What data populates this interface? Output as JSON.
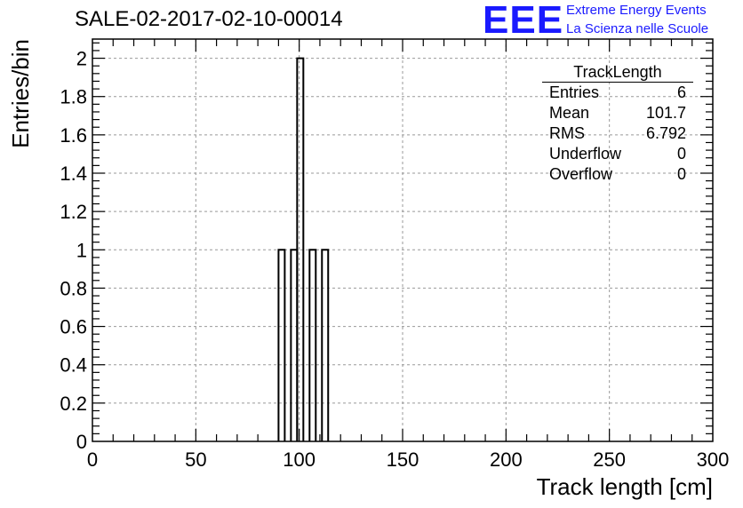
{
  "chart_data": {
    "type": "histogram",
    "title": "SALE-02-2017-02-10-00014",
    "xlabel": "Track length [cm]",
    "ylabel": "Entries/bin",
    "xlim": [
      0,
      300
    ],
    "ylim": [
      0,
      2.1
    ],
    "x_ticks": [
      0,
      50,
      100,
      150,
      200,
      250,
      300
    ],
    "x_tick_labels": [
      "0",
      "50",
      "100",
      "150",
      "200",
      "250",
      "300"
    ],
    "y_ticks": [
      0,
      0.2,
      0.4,
      0.6,
      0.8,
      1,
      1.2,
      1.4,
      1.6,
      1.8,
      2
    ],
    "y_tick_labels": [
      "0",
      "0.2",
      "0.4",
      "0.6",
      "0.8",
      "1",
      "1.2",
      "1.4",
      "1.6",
      "1.8",
      "2"
    ],
    "grid": true,
    "bin_width": 3,
    "bins": [
      {
        "x_low": 90,
        "x_high": 93,
        "value": 1
      },
      {
        "x_low": 96,
        "x_high": 99,
        "value": 1
      },
      {
        "x_low": 99,
        "x_high": 102,
        "value": 2
      },
      {
        "x_low": 105,
        "x_high": 108,
        "value": 1
      },
      {
        "x_low": 111,
        "x_high": 114,
        "value": 1
      }
    ],
    "line_color": "#000000"
  },
  "logo": {
    "mark": "EEE",
    "line1": "Extreme Energy Events",
    "line2": "La Scienza nelle Scuole",
    "color": "#1a1aff"
  },
  "stats": {
    "title": "TrackLength",
    "rows": [
      {
        "label": "Entries",
        "value": "6"
      },
      {
        "label": "Mean",
        "value": "101.7"
      },
      {
        "label": "RMS",
        "value": "6.792"
      },
      {
        "label": "Underflow",
        "value": "0"
      },
      {
        "label": "Overflow",
        "value": "0"
      }
    ]
  }
}
